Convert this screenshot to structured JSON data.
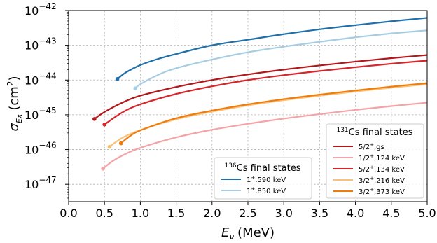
{
  "chart_data": {
    "type": "line",
    "xlabel": "E",
    "xlabel_subscript": "ν",
    "xlabel_unit": "(MeV)",
    "ylabel": "σ",
    "ylabel_subscript": "Ex",
    "ylabel_unit": "(cm",
    "ylabel_unit_sup": "2",
    "ylabel_unit_close": ")",
    "xlim": [
      0,
      5
    ],
    "ylim_log10": [
      -47.5,
      -42
    ],
    "yscale": "log",
    "grid": true,
    "x_ticks": [
      "0.0",
      "0.5",
      "1.0",
      "1.5",
      "2.0",
      "2.5",
      "3.0",
      "3.5",
      "4.0",
      "4.5",
      "5.0"
    ],
    "y_ticks": [
      {
        "base": "10",
        "exp": "−47",
        "value": -47
      },
      {
        "base": "10",
        "exp": "−46",
        "value": -46
      },
      {
        "base": "10",
        "exp": "−45",
        "value": -45
      },
      {
        "base": "10",
        "exp": "−44",
        "value": -44
      },
      {
        "base": "10",
        "exp": "−43",
        "value": -43
      },
      {
        "base": "10",
        "exp": "−42",
        "value": -42
      }
    ],
    "legends": [
      {
        "title_sup": "136",
        "title_rest": "Cs final states",
        "placement": "bottom-center",
        "entries": [
          {
            "label_pre": "1",
            "label_sup": "+",
            "label_post": ",590 keV",
            "color": "#1f6fa8"
          },
          {
            "label_pre": "1",
            "label_sup": "+",
            "label_post": ",850 keV",
            "color": "#a6cde3"
          }
        ]
      },
      {
        "title_sup": "131",
        "title_rest": "Cs final states",
        "placement": "lower-right",
        "entries": [
          {
            "label_pre": "5/2",
            "label_sup": "+",
            "label_post": ",gs",
            "color": "#b2181b"
          },
          {
            "label_pre": "1/2",
            "label_sup": "+",
            "label_post": ",124 keV",
            "color": "#f4a3a6"
          },
          {
            "label_pre": "5/2",
            "label_sup": "+",
            "label_post": ",134 keV",
            "color": "#d7262b"
          },
          {
            "label_pre": "3/2",
            "label_sup": "+",
            "label_post": ",216 keV",
            "color": "#f9c27a"
          },
          {
            "label_pre": "3/2",
            "label_sup": "+",
            "label_post": ",373 keV",
            "color": "#ef7d0e"
          }
        ]
      }
    ],
    "series": [
      {
        "name": "1+,590 keV",
        "color": "#1f6fa8",
        "x": [
          0.68,
          0.8,
          1.0,
          1.25,
          1.5,
          2.0,
          2.5,
          3.0,
          3.5,
          4.0,
          4.5,
          5.0
        ],
        "log10_y": [
          -43.97,
          -43.78,
          -43.57,
          -43.39,
          -43.25,
          -43.0,
          -42.84,
          -42.68,
          -42.54,
          -42.42,
          -42.31,
          -42.21
        ]
      },
      {
        "name": "1+,850 keV",
        "color": "#a6cde3",
        "x": [
          0.93,
          1.0,
          1.25,
          1.5,
          2.0,
          2.5,
          3.0,
          3.5,
          4.0,
          4.5,
          5.0
        ],
        "log10_y": [
          -44.24,
          -44.12,
          -43.85,
          -43.66,
          -43.41,
          -43.2,
          -43.04,
          -42.9,
          -42.77,
          -42.66,
          -42.57
        ]
      },
      {
        "name": "5/2+,gs",
        "color": "#b2181b",
        "x": [
          0.36,
          0.5,
          0.75,
          1.0,
          1.5,
          2.0,
          2.5,
          3.0,
          3.5,
          4.0,
          4.5,
          5.0
        ],
        "log10_y": [
          -45.12,
          -44.92,
          -44.65,
          -44.45,
          -44.2,
          -44.0,
          -43.84,
          -43.7,
          -43.58,
          -43.47,
          -43.37,
          -43.28
        ]
      },
      {
        "name": "5/2+,134 keV",
        "color": "#d7262b",
        "x": [
          0.5,
          0.75,
          1.0,
          1.5,
          2.0,
          2.5,
          3.0,
          3.5,
          4.0,
          4.5,
          5.0
        ],
        "log10_y": [
          -45.28,
          -44.93,
          -44.7,
          -44.4,
          -44.18,
          -44.0,
          -43.86,
          -43.74,
          -43.63,
          -43.53,
          -43.44
        ]
      },
      {
        "name": "3/2+,216 keV",
        "color": "#f9c27a",
        "x": [
          0.57,
          0.75,
          1.0,
          1.5,
          2.0,
          2.5,
          3.0,
          3.5,
          4.0,
          4.5,
          5.0
        ],
        "log10_y": [
          -45.92,
          -45.66,
          -45.44,
          -45.13,
          -44.91,
          -44.73,
          -44.58,
          -44.45,
          -44.33,
          -44.22,
          -44.12
        ]
      },
      {
        "name": "3/2+,373 keV",
        "color": "#ef7d0e",
        "x": [
          0.73,
          0.85,
          1.0,
          1.5,
          2.0,
          2.5,
          3.0,
          3.5,
          4.0,
          4.5,
          5.0
        ],
        "log10_y": [
          -45.82,
          -45.62,
          -45.45,
          -45.1,
          -44.88,
          -44.7,
          -44.55,
          -44.42,
          -44.3,
          -44.19,
          -44.09
        ]
      },
      {
        "name": "1/2+,124 keV",
        "color": "#f4a3a6",
        "x": [
          0.48,
          0.6,
          0.75,
          1.0,
          1.5,
          2.0,
          2.5,
          3.0,
          3.5,
          4.0,
          4.5,
          5.0
        ],
        "log10_y": [
          -46.55,
          -46.35,
          -46.17,
          -45.95,
          -45.65,
          -45.43,
          -45.26,
          -45.11,
          -44.98,
          -44.86,
          -44.75,
          -44.65
        ]
      }
    ]
  }
}
